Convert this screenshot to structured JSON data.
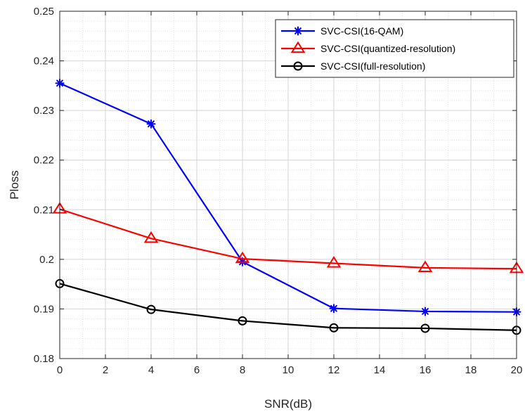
{
  "chart_data": {
    "type": "line",
    "title": "",
    "xlabel": "SNR(dB)",
    "ylabel": "Ploss",
    "xlim": [
      0,
      20
    ],
    "ylim": [
      0.18,
      0.25
    ],
    "xticks": [
      "0",
      "2",
      "4",
      "6",
      "8",
      "10",
      "12",
      "14",
      "16",
      "18",
      "20"
    ],
    "yticks": [
      "0.18",
      "0.19",
      "0.2",
      "0.21",
      "0.22",
      "0.23",
      "0.24",
      "0.25"
    ],
    "grid": true,
    "minor_grid": true,
    "legend_position": "top-right",
    "x": [
      0,
      4,
      8,
      12,
      16,
      20
    ],
    "series": [
      {
        "name": "SVC-CSI(16-QAM)",
        "color": "#0000ff",
        "marker": "asterisk",
        "values": [
          0.2355,
          0.2273,
          0.1995,
          0.1901,
          0.1895,
          0.1894
        ]
      },
      {
        "name": "SVC-CSI(quantized-resolution)",
        "color": "#ff0000",
        "marker": "triangle",
        "values": [
          0.2101,
          0.2042,
          0.2001,
          0.1992,
          0.1983,
          0.1981
        ]
      },
      {
        "name": "SVC-CSI(full-resolution)",
        "color": "#000000",
        "marker": "circle",
        "values": [
          0.1951,
          0.1899,
          0.1876,
          0.1862,
          0.1861,
          0.1857
        ]
      }
    ]
  }
}
